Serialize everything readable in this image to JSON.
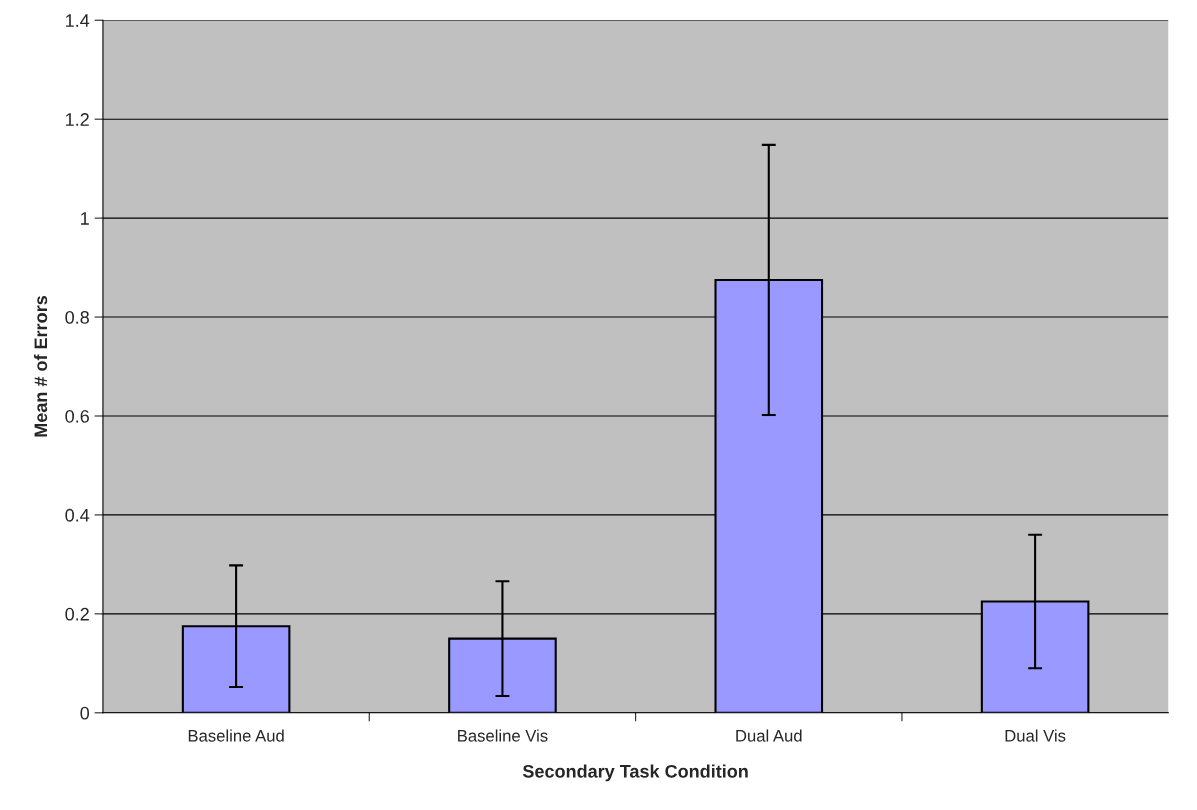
{
  "chart_data": {
    "type": "bar",
    "xlabel": "Secondary Task Condition",
    "ylabel": "Mean # of Errors",
    "categories": [
      "Baseline Aud",
      "Baseline Vis",
      "Dual Aud",
      "Dual Vis"
    ],
    "values": [
      0.175,
      0.15,
      0.875,
      0.225
    ],
    "errors": [
      0.123,
      0.116,
      0.273,
      0.135
    ],
    "color": "#9999ff",
    "ylim": [
      0,
      1.4
    ],
    "yticks": [
      0,
      0.2,
      0.4,
      0.6,
      0.8,
      1,
      1.2,
      1.4
    ],
    "grid": "y",
    "legend": false
  }
}
